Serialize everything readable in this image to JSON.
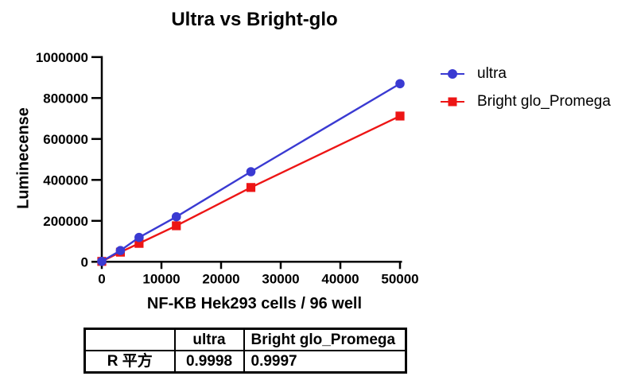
{
  "window": {
    "background": "#ffffff"
  },
  "chart_data": {
    "type": "line",
    "title": "Ultra vs Bright-glo",
    "xlabel": "NF-KB Hek293 cells / 96 well",
    "ylabel": "Luminecense",
    "xlim": [
      0,
      50000
    ],
    "ylim": [
      0,
      1000000
    ],
    "x_ticks": [
      0,
      10000,
      20000,
      30000,
      40000,
      50000
    ],
    "y_ticks": [
      0,
      200000,
      400000,
      600000,
      800000,
      1000000
    ],
    "grid": false,
    "legend_position": "right",
    "axis_color": "#000000",
    "text_color": "#000000",
    "x": [
      0,
      3125,
      6250,
      12500,
      25000,
      50000
    ],
    "series": [
      {
        "name": "ultra",
        "marker": "circle",
        "color": "#3a3ad2",
        "values": [
          2000,
          55000,
          119000,
          220000,
          440000,
          870000
        ]
      },
      {
        "name": "Bright glo_Promega",
        "marker": "square",
        "color": "#ed1515",
        "values": [
          2000,
          47000,
          90000,
          176000,
          363000,
          712000
        ]
      }
    ]
  },
  "table": {
    "headers": [
      "",
      "ultra",
      "Bright glo_Promega"
    ],
    "rows": [
      [
        "R 平方",
        "0.9998",
        "0.9997"
      ]
    ]
  }
}
